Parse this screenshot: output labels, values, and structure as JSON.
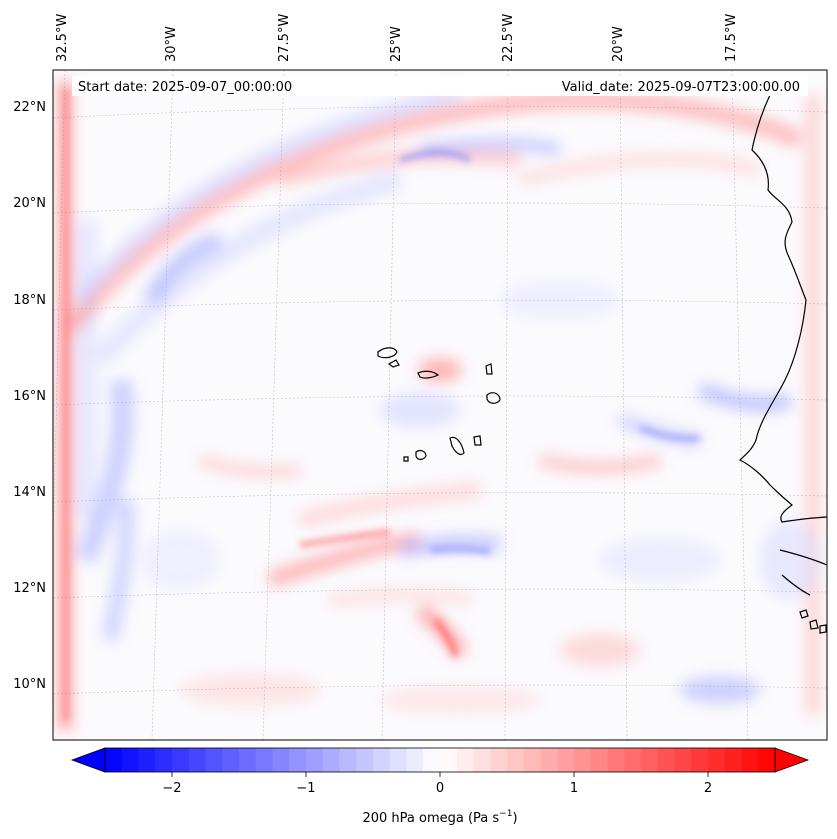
{
  "map": {
    "header": {
      "start_date": "Start date: 2025-09-07_00:00:00",
      "valid_date": "Valid_date: 2025-09-07T23:00:00.00"
    },
    "longitude_labels": [
      "32.5°W",
      "30°W",
      "27.5°W",
      "25°W",
      "22.5°W",
      "20°W",
      "17.5°W"
    ],
    "latitude_labels": [
      "22°N",
      "20°N",
      "18°N",
      "16°N",
      "14°N",
      "12°N",
      "10°N"
    ],
    "colorbar": {
      "ticks": [
        "−2",
        "−1",
        "0",
        "1",
        "2"
      ],
      "label": "200 hPa omega (Pa s",
      "label_exponent": "−1",
      "label_close": ")",
      "range": [
        -2.5,
        2.5
      ],
      "colors": {
        "negative": "#0000ff",
        "zero": "#ffffff",
        "positive": "#ff0000"
      }
    }
  }
}
